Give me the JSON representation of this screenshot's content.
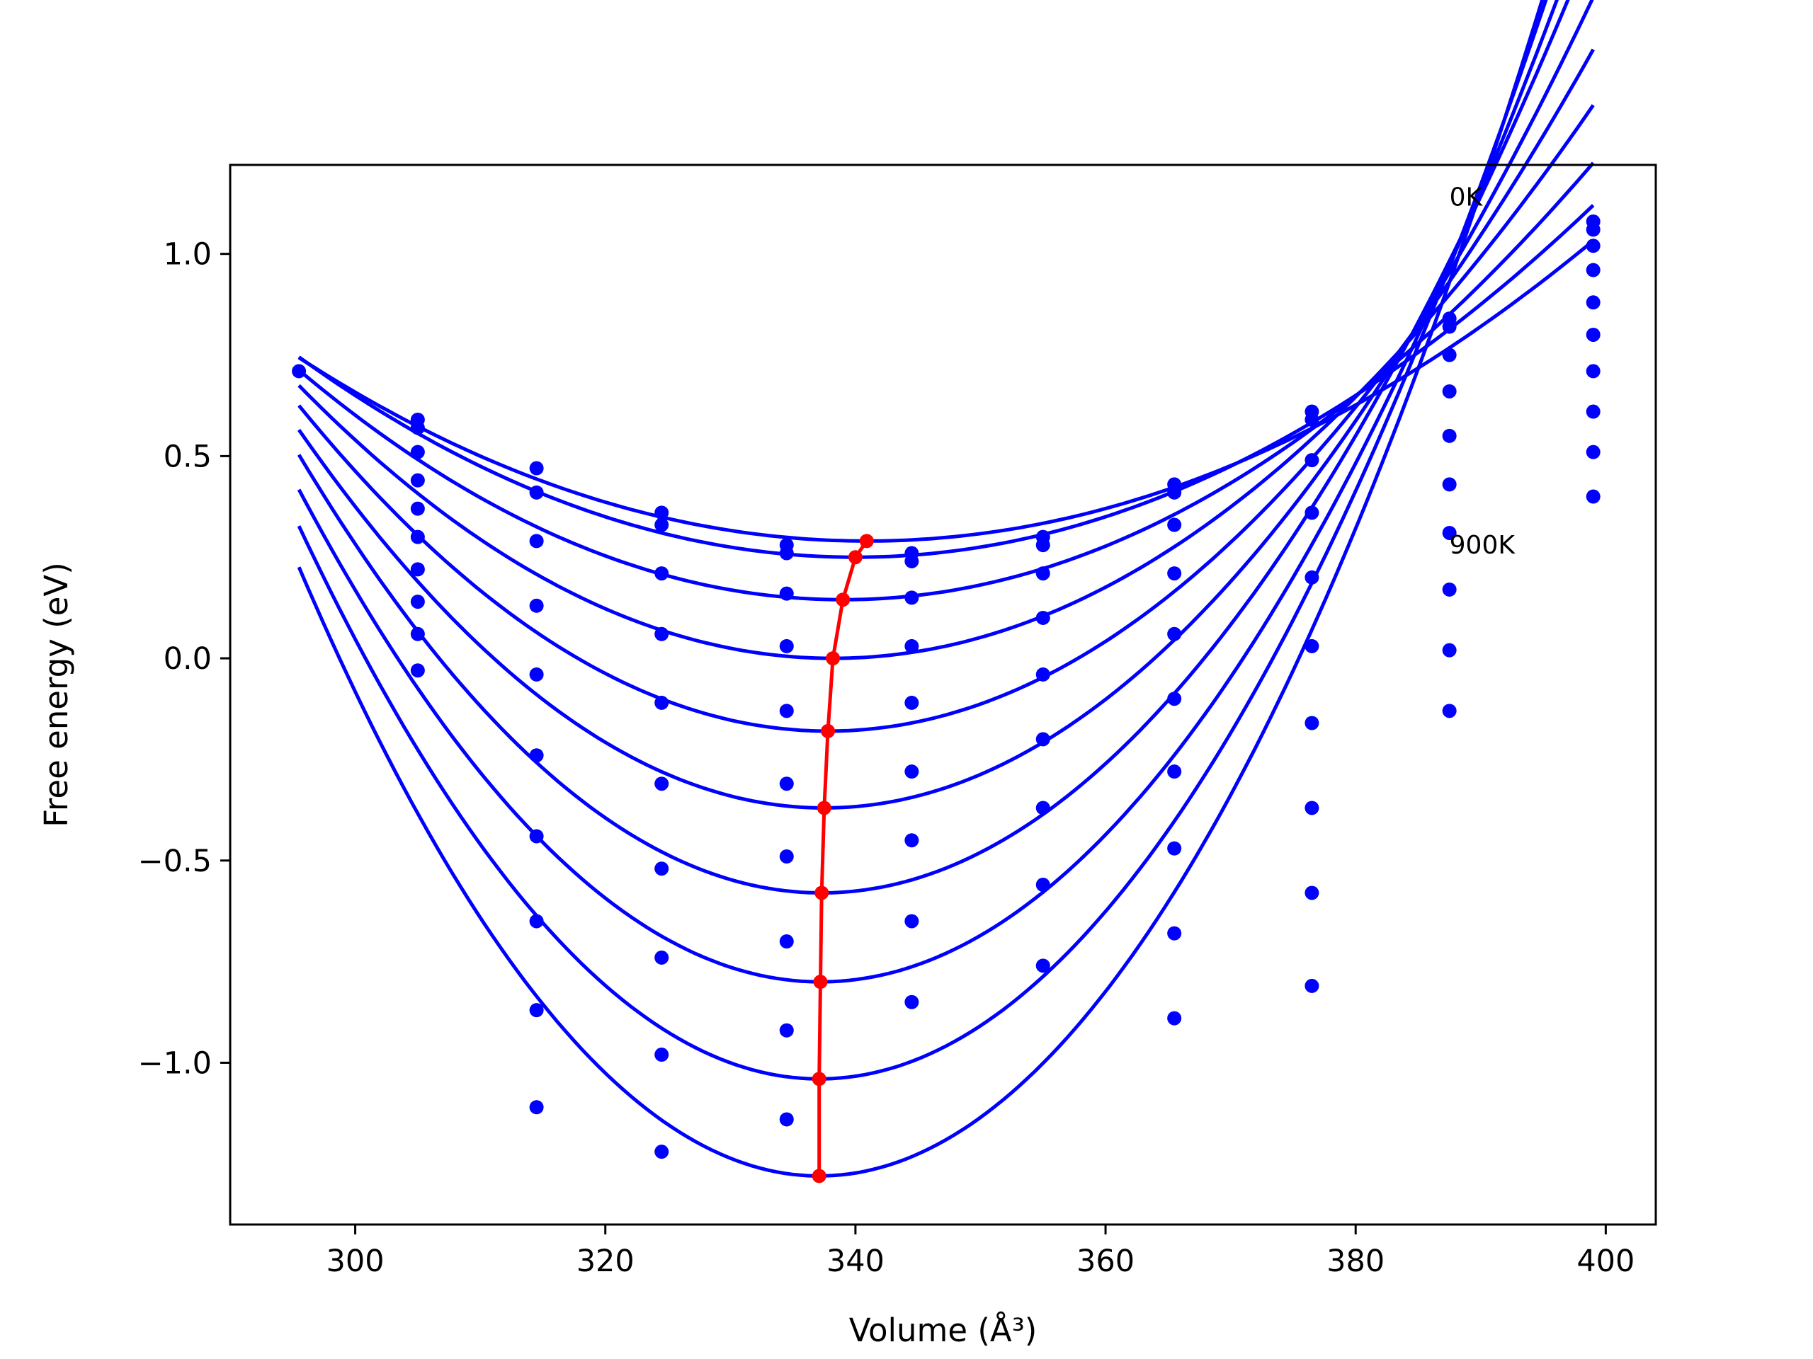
{
  "chart_data": {
    "type": "line",
    "title": "",
    "xlabel": "Volume (Å³)",
    "ylabel": "Free energy (eV)",
    "xlim": [
      290,
      404
    ],
    "ylim": [
      -1.4,
      1.22
    ],
    "xticks": [
      300,
      320,
      340,
      360,
      380,
      400
    ],
    "xtick_labels": [
      "300",
      "320",
      "340",
      "360",
      "380",
      "400"
    ],
    "yticks": [
      -1.0,
      -0.5,
      0.0,
      0.5,
      1.0
    ],
    "ytick_labels": [
      "−1.0",
      "−0.5",
      "0.0",
      "0.5",
      "1.0"
    ],
    "grid": false,
    "annotations": [
      {
        "text": "0K",
        "x": 387.5,
        "y": 1.14
      },
      {
        "text": "900K",
        "x": 387.5,
        "y": 0.28
      }
    ],
    "colors": {
      "curves": "#0000ff",
      "minimum_path": "#ff0000",
      "axes": "#000000"
    },
    "fit_range": [
      295.5,
      399
    ],
    "curve_minima": [
      {
        "v0": 340.9,
        "e0": 0.29,
        "a": 0.00022
      },
      {
        "v0": 340.0,
        "e0": 0.25,
        "a": 0.00025
      },
      {
        "v0": 339.0,
        "e0": 0.145,
        "a": 0.0003
      },
      {
        "v0": 338.2,
        "e0": 0.0,
        "a": 0.00037
      },
      {
        "v0": 337.8,
        "e0": -0.18,
        "a": 0.00045
      },
      {
        "v0": 337.5,
        "e0": -0.37,
        "a": 0.00053
      },
      {
        "v0": 337.3,
        "e0": -0.58,
        "a": 0.00062
      },
      {
        "v0": 337.2,
        "e0": -0.8,
        "a": 0.0007
      },
      {
        "v0": 337.1,
        "e0": -1.04,
        "a": 0.00079
      },
      {
        "v0": 337.1,
        "e0": -1.28,
        "a": 0.00087
      }
    ],
    "minimum_path": {
      "x": [
        340.9,
        340.0,
        339.0,
        338.2,
        337.8,
        337.5,
        337.3,
        337.2,
        337.1,
        337.1
      ],
      "y": [
        0.29,
        0.25,
        0.145,
        0.0,
        -0.18,
        -0.37,
        -0.58,
        -0.8,
        -1.04,
        -1.28
      ]
    },
    "points": {
      "x": [
        295.5,
        305,
        305,
        305,
        305,
        305,
        305,
        305,
        305,
        305,
        314.5,
        314.5,
        314.5,
        314.5,
        314.5,
        314.5,
        314.5,
        314.5,
        314.5,
        324.5,
        324.5,
        324.5,
        324.5,
        324.5,
        324.5,
        324.5,
        324.5,
        324.5,
        324.5,
        334.5,
        334.5,
        334.5,
        334.5,
        334.5,
        334.5,
        334.5,
        334.5,
        334.5,
        334.5,
        344.5,
        344.5,
        344.5,
        344.5,
        344.5,
        344.5,
        344.5,
        344.5,
        344.5,
        355,
        355,
        355,
        355,
        355,
        355,
        355,
        355,
        355,
        365.5,
        365.5,
        365.5,
        365.5,
        365.5,
        365.5,
        365.5,
        365.5,
        365.5,
        365.5,
        376.5,
        376.5,
        376.5,
        376.5,
        376.5,
        376.5,
        376.5,
        376.5,
        376.5,
        376.5,
        387.5,
        387.5,
        387.5,
        387.5,
        387.5,
        387.5,
        387.5,
        387.5,
        387.5,
        387.5,
        399,
        399,
        399,
        399,
        399,
        399,
        399,
        399,
        399,
        399
      ],
      "y": [
        0.71,
        0.59,
        0.57,
        0.51,
        0.44,
        0.37,
        0.3,
        0.22,
        0.14,
        0.06,
        0.47,
        0.41,
        0.29,
        0.13,
        -0.04,
        -0.24,
        -0.44,
        -0.65,
        -0.87,
        0.36,
        0.33,
        0.21,
        0.06,
        -0.11,
        -0.31,
        -0.52,
        -0.74,
        -0.98,
        -1.22,
        0.28,
        0.26,
        0.16,
        0.03,
        -0.13,
        -0.31,
        -0.49,
        -0.7,
        -0.92,
        -1.14,
        0.26,
        0.24,
        0.15,
        0.03,
        -0.11,
        -0.28,
        -0.45,
        -0.65,
        -0.85,
        0.3,
        0.28,
        0.21,
        0.1,
        -0.04,
        -0.2,
        -0.37,
        -0.56,
        -0.76,
        0.43,
        0.41,
        0.33,
        0.21,
        0.06,
        -0.1,
        -0.28,
        -0.47,
        -0.68,
        -0.89,
        0.61,
        0.59,
        0.49,
        0.36,
        0.2,
        0.03,
        -0.16,
        -0.37,
        -0.58,
        -0.81,
        0.84,
        0.82,
        0.75,
        0.66,
        0.55,
        0.43,
        0.31,
        0.17,
        0.02,
        -0.13,
        1.08,
        1.06,
        1.02,
        0.96,
        0.88,
        0.8,
        0.71,
        0.61,
        0.51,
        0.4
      ]
    },
    "extra_points": {
      "x": [
        305,
        314.5
      ],
      "y": [
        -0.03,
        -1.11
      ]
    }
  }
}
